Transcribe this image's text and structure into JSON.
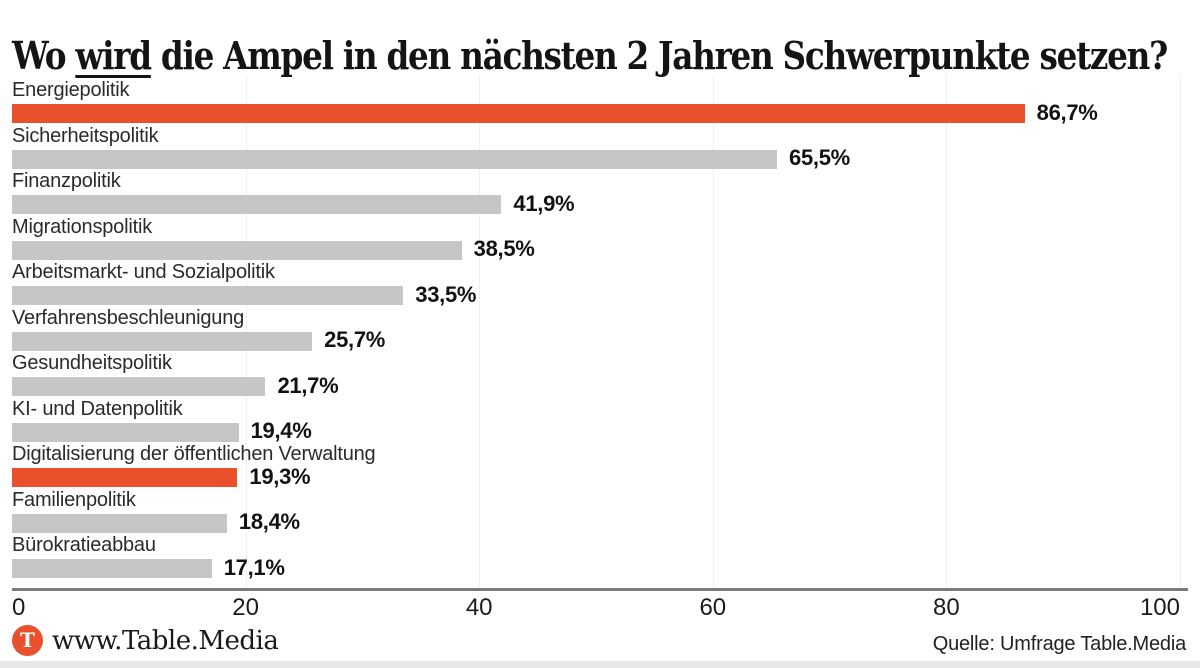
{
  "title": {
    "pre": "Wo ",
    "underlined": "wird",
    "post": " die Ampel in den nächsten 2 Jahren Schwerpunkte setzen?"
  },
  "colors": {
    "bar_default": "#c6c6c6",
    "bar_highlight": "#e8512b",
    "axis_line": "#7b7b7b",
    "gridline": "#efefef",
    "text": "#1a1a1a"
  },
  "chart_data": {
    "type": "bar",
    "orientation": "horizontal",
    "title": "Wo wird die Ampel in den nächsten 2 Jahren Schwerpunkte setzen?",
    "categories": [
      "Energiepolitik",
      "Sicherheitspolitik",
      "Finanzpolitik",
      "Migrationspolitik",
      "Arbeitsmarkt- und Sozialpolitik",
      "Verfahrensbeschleunigung",
      "Gesundheitspolitik",
      "KI- und Datenpolitik",
      "Digitalisierung der öffentlichen Verwaltung",
      "Familienpolitik",
      "Bürokratieabbau"
    ],
    "values": [
      86.7,
      65.5,
      41.9,
      38.5,
      33.5,
      25.7,
      21.7,
      19.4,
      19.3,
      18.4,
      17.1
    ],
    "value_labels": [
      "86,7%",
      "65,5%",
      "41,9%",
      "38,5%",
      "33,5%",
      "25,7%",
      "21,7%",
      "19,4%",
      "19,3%",
      "18,4%",
      "17,1%"
    ],
    "highlight_indices": [
      0,
      8
    ],
    "xlim": [
      0,
      100
    ],
    "x_ticks": [
      0,
      20,
      40,
      60,
      80,
      100
    ],
    "x_tick_labels": [
      "0",
      "20",
      "40",
      "60",
      "80",
      "100"
    ],
    "grid": true,
    "legend": false
  },
  "footer": {
    "logo_letter": "T",
    "site": "www.Table.Media",
    "source": "Quelle: Umfrage Table.Media"
  }
}
